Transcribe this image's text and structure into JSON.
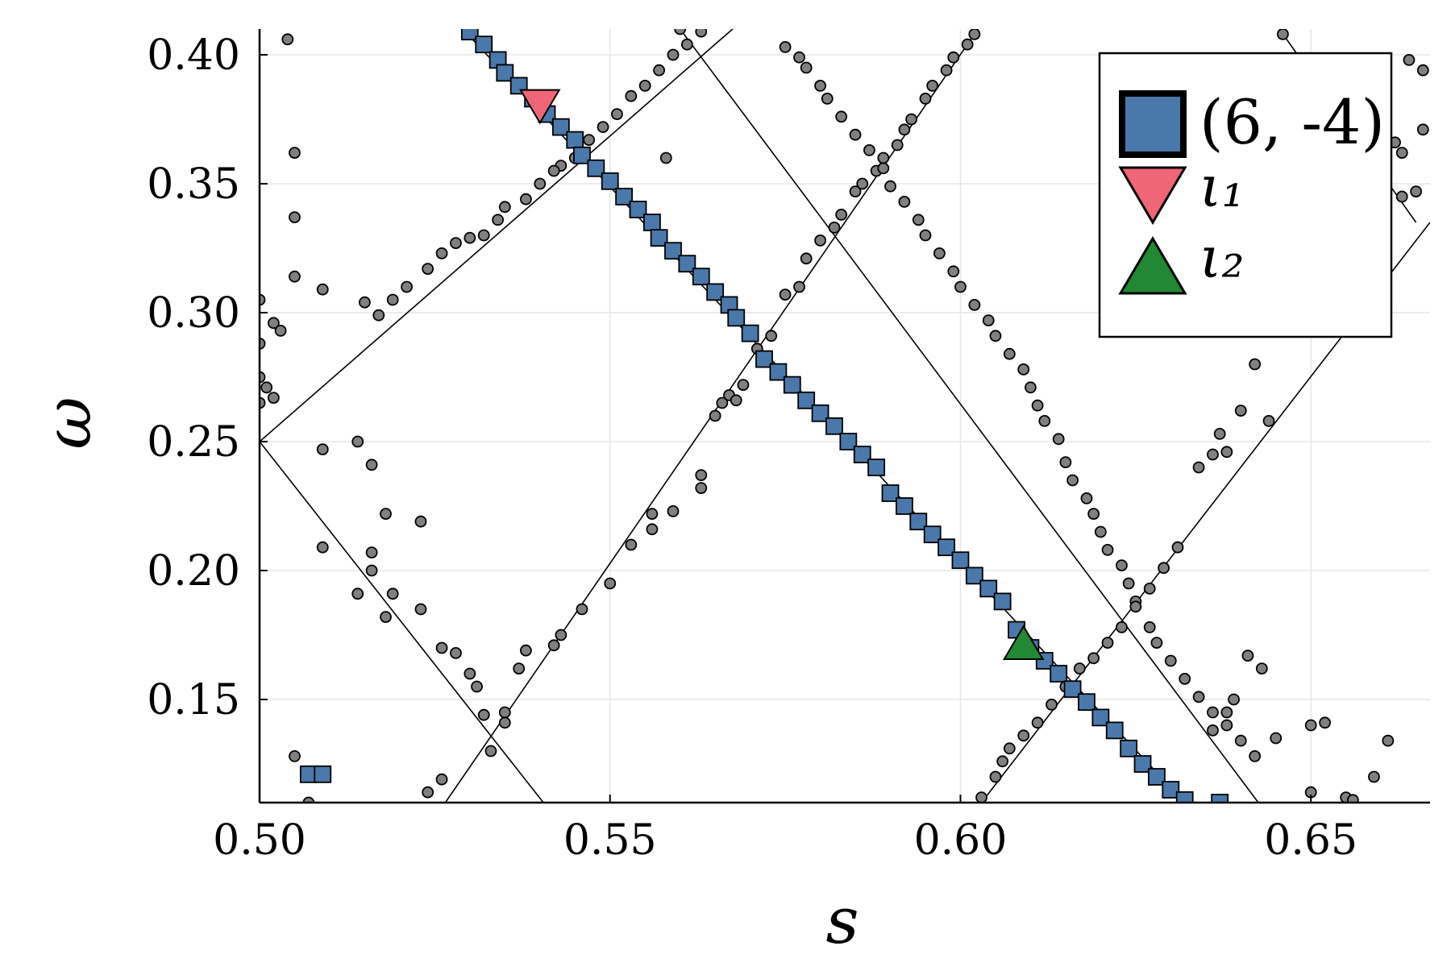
{
  "chart_data": {
    "type": "scatter",
    "title": "",
    "xlabel": "s",
    "ylabel": "ω",
    "xlim": [
      0.5,
      0.667
    ],
    "ylim": [
      0.11,
      0.41
    ],
    "xticks": [
      0.5,
      0.55,
      0.6,
      0.65
    ],
    "xtick_labels": [
      "0.50",
      "0.55",
      "0.60",
      "0.65"
    ],
    "yticks": [
      0.15,
      0.2,
      0.25,
      0.3,
      0.35,
      0.4
    ],
    "ytick_labels": [
      "0.15",
      "0.20",
      "0.25",
      "0.30",
      "0.35",
      "0.40"
    ],
    "grid": true,
    "legend_position": "top-right",
    "lines": [
      [
        [
          0.5,
          0.25
        ],
        [
          0.5675,
          0.41
        ]
      ],
      [
        [
          0.5,
          0.25
        ],
        [
          0.5405,
          0.11
        ]
      ],
      [
        [
          0.5265,
          0.11
        ],
        [
          0.6025,
          0.41
        ]
      ],
      [
        [
          0.56,
          0.41
        ],
        [
          0.6425,
          0.11
        ]
      ],
      [
        [
          0.529,
          0.41
        ],
        [
          0.632,
          0.11
        ]
      ],
      [
        [
          0.603,
          0.11
        ],
        [
          0.667,
          0.335
        ]
      ],
      [
        [
          0.665,
          0.335
        ],
        [
          0.6455,
          0.41
        ]
      ]
    ],
    "series": [
      {
        "name": "(6, -4)",
        "marker": "square",
        "color": "#4a78aa",
        "points": [
          [
            0.53,
            0.409
          ],
          [
            0.532,
            0.404
          ],
          [
            0.534,
            0.398
          ],
          [
            0.535,
            0.393
          ],
          [
            0.537,
            0.388
          ],
          [
            0.539,
            0.383
          ],
          [
            0.541,
            0.377
          ],
          [
            0.543,
            0.372
          ],
          [
            0.545,
            0.367
          ],
          [
            0.546,
            0.361
          ],
          [
            0.548,
            0.356
          ],
          [
            0.55,
            0.351
          ],
          [
            0.552,
            0.345
          ],
          [
            0.554,
            0.34
          ],
          [
            0.556,
            0.335
          ],
          [
            0.557,
            0.329
          ],
          [
            0.559,
            0.324
          ],
          [
            0.561,
            0.319
          ],
          [
            0.563,
            0.314
          ],
          [
            0.565,
            0.308
          ],
          [
            0.567,
            0.303
          ],
          [
            0.568,
            0.298
          ],
          [
            0.57,
            0.292
          ],
          [
            0.572,
            0.282
          ],
          [
            0.574,
            0.277
          ],
          [
            0.576,
            0.272
          ],
          [
            0.578,
            0.266
          ],
          [
            0.58,
            0.261
          ],
          [
            0.582,
            0.256
          ],
          [
            0.584,
            0.25
          ],
          [
            0.586,
            0.245
          ],
          [
            0.588,
            0.24
          ],
          [
            0.59,
            0.23
          ],
          [
            0.592,
            0.225
          ],
          [
            0.594,
            0.219
          ],
          [
            0.596,
            0.214
          ],
          [
            0.598,
            0.209
          ],
          [
            0.6,
            0.204
          ],
          [
            0.602,
            0.198
          ],
          [
            0.604,
            0.193
          ],
          [
            0.606,
            0.188
          ],
          [
            0.608,
            0.177
          ],
          [
            0.61,
            0.17
          ],
          [
            0.612,
            0.165
          ],
          [
            0.614,
            0.16
          ],
          [
            0.616,
            0.154
          ],
          [
            0.618,
            0.149
          ],
          [
            0.62,
            0.143
          ],
          [
            0.622,
            0.138
          ],
          [
            0.624,
            0.131
          ],
          [
            0.626,
            0.125
          ],
          [
            0.628,
            0.12
          ],
          [
            0.63,
            0.115
          ],
          [
            0.632,
            0.111
          ],
          [
            0.637,
            0.11
          ],
          [
            0.507,
            0.121
          ],
          [
            0.509,
            0.121
          ]
        ]
      },
      {
        "name": "ι₁",
        "marker": "triangle-down",
        "color": "#ee6677",
        "points": [
          [
            0.54,
            0.38
          ]
        ]
      },
      {
        "name": "ι₂",
        "marker": "triangle-up",
        "color": "#228833",
        "points": [
          [
            0.609,
            0.172
          ]
        ]
      }
    ],
    "background_points": [
      [
        0.504,
        0.406
      ],
      [
        0.505,
        0.362
      ],
      [
        0.505,
        0.337
      ],
      [
        0.505,
        0.314
      ],
      [
        0.509,
        0.309
      ],
      [
        0.5,
        0.305
      ],
      [
        0.502,
        0.296
      ],
      [
        0.503,
        0.293
      ],
      [
        0.5,
        0.288
      ],
      [
        0.5,
        0.275
      ],
      [
        0.501,
        0.271
      ],
      [
        0.5,
        0.265
      ],
      [
        0.502,
        0.267
      ],
      [
        0.509,
        0.247
      ],
      [
        0.514,
        0.25
      ],
      [
        0.516,
        0.241
      ],
      [
        0.518,
        0.222
      ],
      [
        0.523,
        0.219
      ],
      [
        0.516,
        0.207
      ],
      [
        0.516,
        0.2
      ],
      [
        0.519,
        0.191
      ],
      [
        0.514,
        0.191
      ],
      [
        0.518,
        0.182
      ],
      [
        0.523,
        0.185
      ],
      [
        0.509,
        0.209
      ],
      [
        0.505,
        0.128
      ],
      [
        0.507,
        0.11
      ],
      [
        0.524,
        0.114
      ],
      [
        0.526,
        0.119
      ],
      [
        0.526,
        0.17
      ],
      [
        0.528,
        0.168
      ],
      [
        0.53,
        0.16
      ],
      [
        0.531,
        0.155
      ],
      [
        0.532,
        0.144
      ],
      [
        0.533,
        0.13
      ],
      [
        0.535,
        0.145
      ],
      [
        0.535,
        0.141
      ],
      [
        0.537,
        0.162
      ],
      [
        0.538,
        0.169
      ],
      [
        0.542,
        0.171
      ],
      [
        0.543,
        0.175
      ],
      [
        0.546,
        0.185
      ],
      [
        0.55,
        0.195
      ],
      [
        0.553,
        0.21
      ],
      [
        0.556,
        0.222
      ],
      [
        0.559,
        0.223
      ],
      [
        0.556,
        0.216
      ],
      [
        0.563,
        0.237
      ],
      [
        0.563,
        0.232
      ],
      [
        0.565,
        0.26
      ],
      [
        0.566,
        0.265
      ],
      [
        0.567,
        0.268
      ],
      [
        0.568,
        0.266
      ],
      [
        0.569,
        0.272
      ],
      [
        0.571,
        0.286
      ],
      [
        0.573,
        0.291
      ],
      [
        0.575,
        0.307
      ],
      [
        0.577,
        0.31
      ],
      [
        0.578,
        0.321
      ],
      [
        0.58,
        0.328
      ],
      [
        0.582,
        0.333
      ],
      [
        0.583,
        0.338
      ],
      [
        0.585,
        0.347
      ],
      [
        0.586,
        0.35
      ],
      [
        0.588,
        0.355
      ],
      [
        0.589,
        0.36
      ],
      [
        0.591,
        0.365
      ],
      [
        0.592,
        0.371
      ],
      [
        0.593,
        0.375
      ],
      [
        0.595,
        0.383
      ],
      [
        0.596,
        0.388
      ],
      [
        0.598,
        0.394
      ],
      [
        0.599,
        0.399
      ],
      [
        0.601,
        0.404
      ],
      [
        0.602,
        0.408
      ],
      [
        0.543,
        0.357
      ],
      [
        0.545,
        0.36
      ],
      [
        0.547,
        0.367
      ],
      [
        0.549,
        0.372
      ],
      [
        0.551,
        0.377
      ],
      [
        0.553,
        0.384
      ],
      [
        0.555,
        0.388
      ],
      [
        0.557,
        0.394
      ],
      [
        0.559,
        0.4
      ],
      [
        0.561,
        0.404
      ],
      [
        0.563,
        0.409
      ],
      [
        0.535,
        0.341
      ],
      [
        0.538,
        0.344
      ],
      [
        0.54,
        0.35
      ],
      [
        0.542,
        0.355
      ],
      [
        0.53,
        0.329
      ],
      [
        0.532,
        0.33
      ],
      [
        0.534,
        0.336
      ],
      [
        0.524,
        0.317
      ],
      [
        0.526,
        0.323
      ],
      [
        0.528,
        0.327
      ],
      [
        0.521,
        0.31
      ],
      [
        0.517,
        0.299
      ],
      [
        0.515,
        0.304
      ],
      [
        0.519,
        0.305
      ],
      [
        0.575,
        0.403
      ],
      [
        0.577,
        0.399
      ],
      [
        0.578,
        0.395
      ],
      [
        0.58,
        0.388
      ],
      [
        0.581,
        0.383
      ],
      [
        0.583,
        0.376
      ],
      [
        0.585,
        0.369
      ],
      [
        0.587,
        0.363
      ],
      [
        0.589,
        0.356
      ],
      [
        0.59,
        0.349
      ],
      [
        0.592,
        0.343
      ],
      [
        0.594,
        0.336
      ],
      [
        0.595,
        0.33
      ],
      [
        0.597,
        0.323
      ],
      [
        0.599,
        0.316
      ],
      [
        0.6,
        0.31
      ],
      [
        0.602,
        0.303
      ],
      [
        0.604,
        0.297
      ],
      [
        0.605,
        0.291
      ],
      [
        0.607,
        0.284
      ],
      [
        0.609,
        0.278
      ],
      [
        0.61,
        0.271
      ],
      [
        0.611,
        0.264
      ],
      [
        0.612,
        0.258
      ],
      [
        0.614,
        0.251
      ],
      [
        0.615,
        0.242
      ],
      [
        0.616,
        0.235
      ],
      [
        0.618,
        0.228
      ],
      [
        0.619,
        0.222
      ],
      [
        0.62,
        0.215
      ],
      [
        0.621,
        0.208
      ],
      [
        0.623,
        0.202
      ],
      [
        0.624,
        0.195
      ],
      [
        0.625,
        0.188
      ],
      [
        0.627,
        0.178
      ],
      [
        0.628,
        0.172
      ],
      [
        0.63,
        0.165
      ],
      [
        0.632,
        0.158
      ],
      [
        0.634,
        0.151
      ],
      [
        0.636,
        0.145
      ],
      [
        0.638,
        0.14
      ],
      [
        0.64,
        0.134
      ],
      [
        0.642,
        0.128
      ],
      [
        0.603,
        0.112
      ],
      [
        0.605,
        0.12
      ],
      [
        0.606,
        0.126
      ],
      [
        0.607,
        0.131
      ],
      [
        0.609,
        0.136
      ],
      [
        0.611,
        0.141
      ],
      [
        0.613,
        0.148
      ],
      [
        0.615,
        0.155
      ],
      [
        0.617,
        0.162
      ],
      [
        0.619,
        0.166
      ],
      [
        0.621,
        0.172
      ],
      [
        0.623,
        0.178
      ],
      [
        0.625,
        0.186
      ],
      [
        0.627,
        0.193
      ],
      [
        0.629,
        0.201
      ],
      [
        0.631,
        0.209
      ],
      [
        0.634,
        0.24
      ],
      [
        0.636,
        0.245
      ],
      [
        0.637,
        0.253
      ],
      [
        0.64,
        0.262
      ],
      [
        0.638,
        0.246
      ],
      [
        0.642,
        0.28
      ],
      [
        0.644,
        0.258
      ],
      [
        0.641,
        0.167
      ],
      [
        0.643,
        0.162
      ],
      [
        0.638,
        0.145
      ],
      [
        0.636,
        0.138
      ],
      [
        0.65,
        0.14
      ],
      [
        0.652,
        0.141
      ],
      [
        0.655,
        0.112
      ],
      [
        0.659,
        0.12
      ],
      [
        0.661,
        0.134
      ],
      [
        0.65,
        0.114
      ],
      [
        0.653,
        0.107
      ],
      [
        0.646,
        0.408
      ],
      [
        0.663,
        0.345
      ],
      [
        0.665,
        0.347
      ],
      [
        0.666,
        0.394
      ],
      [
        0.664,
        0.398
      ],
      [
        0.662,
        0.366
      ],
      [
        0.666,
        0.371
      ],
      [
        0.663,
        0.362
      ],
      [
        0.639,
        0.15
      ],
      [
        0.645,
        0.135
      ],
      [
        0.656,
        0.111
      ],
      [
        0.558,
        0.36
      ],
      [
        0.56,
        0.41
      ]
    ]
  }
}
